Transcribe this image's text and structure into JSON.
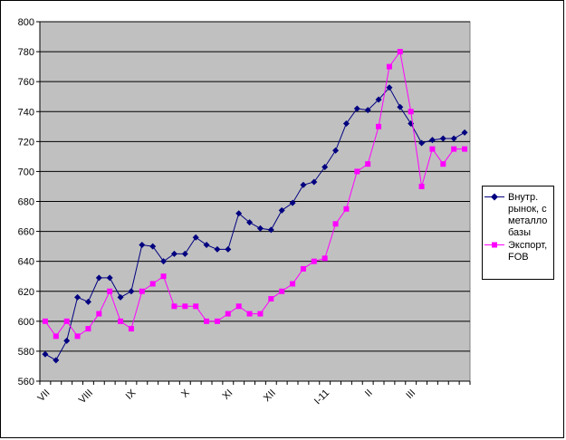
{
  "chart_data": {
    "type": "line",
    "title": "",
    "xlabel": "",
    "ylabel": "",
    "ylim": [
      560,
      800
    ],
    "yticks": [
      560,
      580,
      600,
      620,
      640,
      660,
      680,
      700,
      720,
      740,
      760,
      780,
      800
    ],
    "x_tick_labels": [
      {
        "label": "VII",
        "index": 0
      },
      {
        "label": "VIII",
        "index": 4
      },
      {
        "label": "IX",
        "index": 8
      },
      {
        "label": "X",
        "index": 13
      },
      {
        "label": "XI",
        "index": 17
      },
      {
        "label": "XII",
        "index": 21
      },
      {
        "label": "I-11",
        "index": 26
      },
      {
        "label": "II",
        "index": 30
      },
      {
        "label": "III",
        "index": 34
      }
    ],
    "n_points": 40,
    "grid": true,
    "legend_position": "right",
    "series": [
      {
        "name": "Внутр. рынок, с металло базы",
        "color": "#000080",
        "marker": "diamond",
        "values": [
          578,
          574,
          587,
          616,
          613,
          629,
          629,
          616,
          620,
          651,
          650,
          640,
          645,
          645,
          656,
          651,
          648,
          648,
          672,
          666,
          662,
          661,
          674,
          679,
          691,
          693,
          703,
          714,
          732,
          742,
          741,
          748,
          756,
          743,
          732,
          719,
          721,
          722,
          722,
          726
        ]
      },
      {
        "name": "Экспорт, FOB",
        "color": "#FF00FF",
        "marker": "square",
        "values": [
          600,
          590,
          600,
          590,
          595,
          605,
          620,
          600,
          595,
          620,
          625,
          630,
          610,
          610,
          610,
          600,
          600,
          605,
          610,
          605,
          605,
          615,
          620,
          625,
          635,
          640,
          642,
          665,
          675,
          700,
          705,
          730,
          770,
          780,
          740,
          690,
          715,
          705,
          715,
          715
        ]
      }
    ]
  }
}
